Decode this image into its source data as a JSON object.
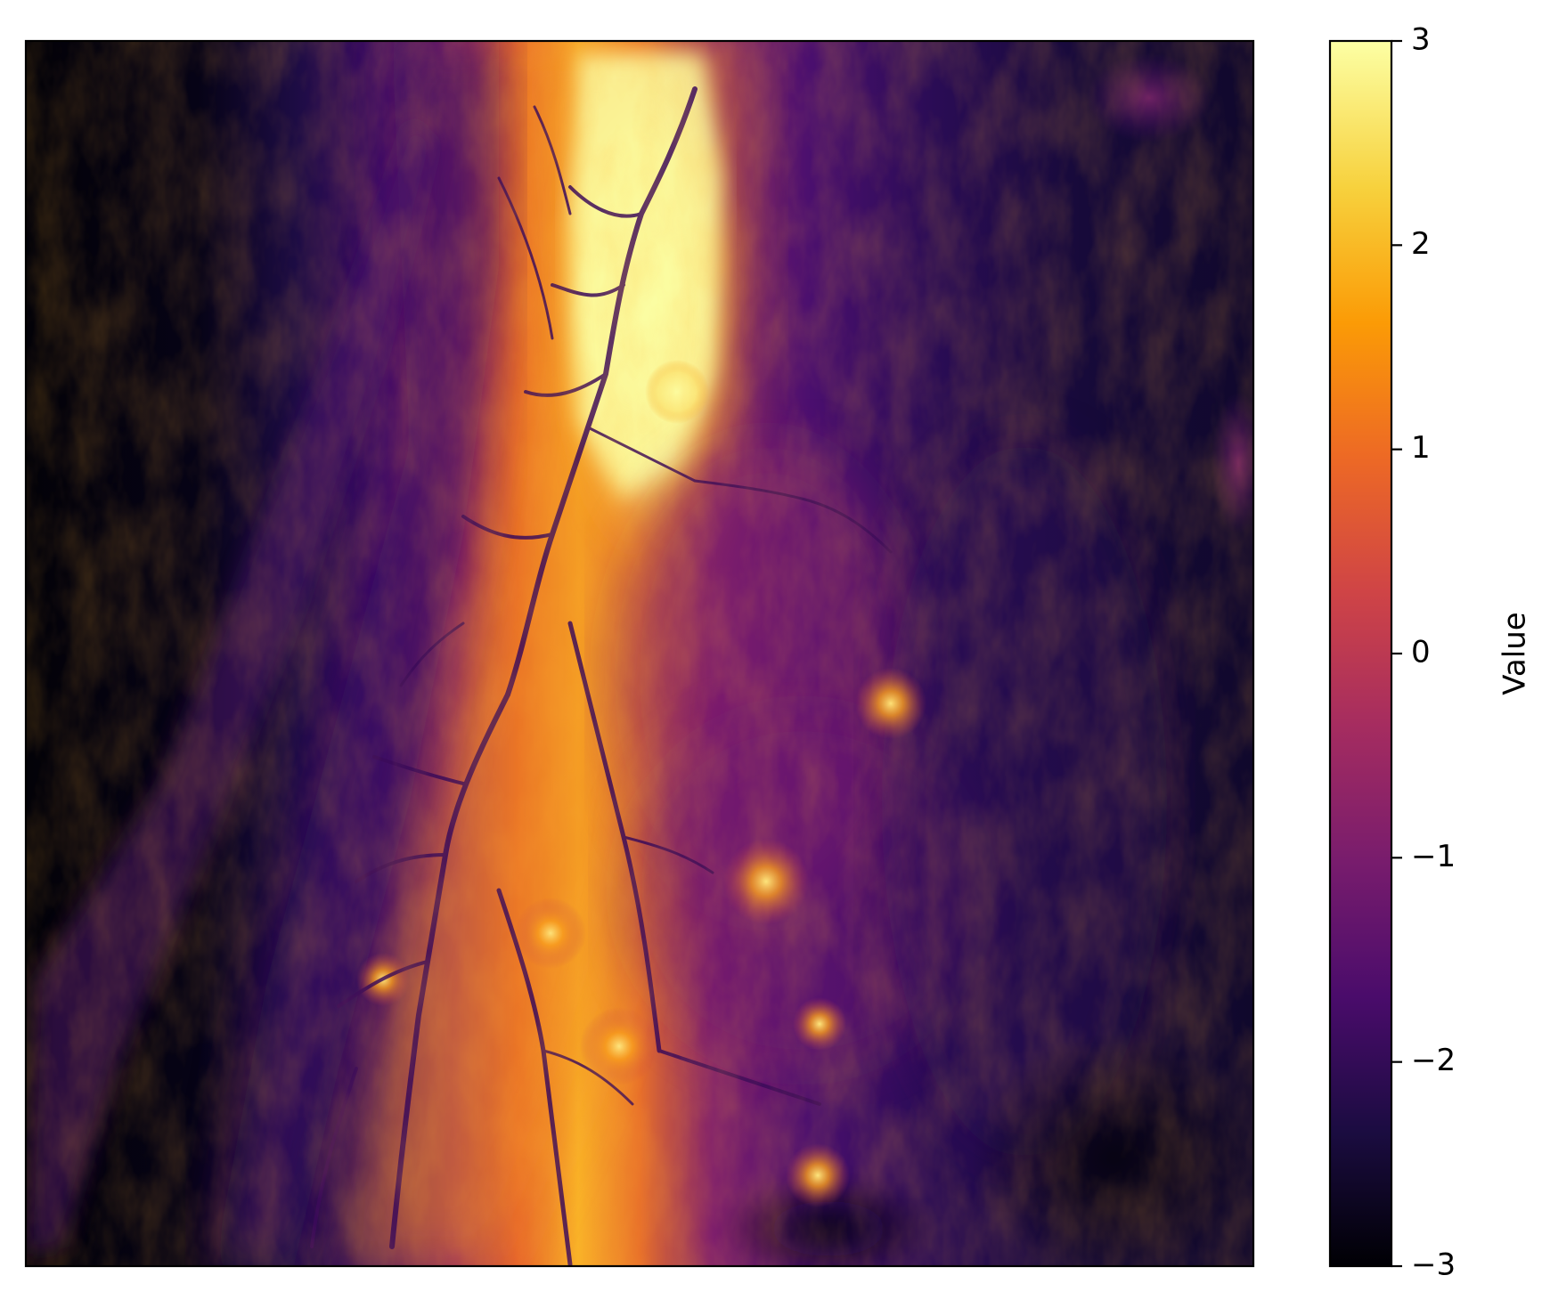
{
  "chart_data": {
    "type": "heatmap",
    "title": "",
    "xlabel": "",
    "ylabel": "",
    "colormap": "inferno",
    "axes_ticks_visible": false,
    "grid": false,
    "colorbar": {
      "label": "Value",
      "vmin": -3,
      "vmax": 3,
      "position": "right",
      "ticks": [
        {
          "value": 3,
          "label": "3"
        },
        {
          "value": 2,
          "label": "2"
        },
        {
          "value": 1,
          "label": "1"
        },
        {
          "value": 0,
          "label": "0"
        },
        {
          "value": -1,
          "label": "−1"
        },
        {
          "value": -2,
          "label": "−2"
        },
        {
          "value": -3,
          "label": "−3"
        }
      ]
    },
    "field_description": "standardized terrain-like elevation raster; bright ridge band running north-south left of center, low values on far left and right",
    "colormap_stops": [
      "#000004",
      "#1b0c41",
      "#4a0c6b",
      "#781c6d",
      "#a52c60",
      "#cf4446",
      "#ed6925",
      "#fb9b06",
      "#f7d13d",
      "#fcffa4"
    ]
  }
}
